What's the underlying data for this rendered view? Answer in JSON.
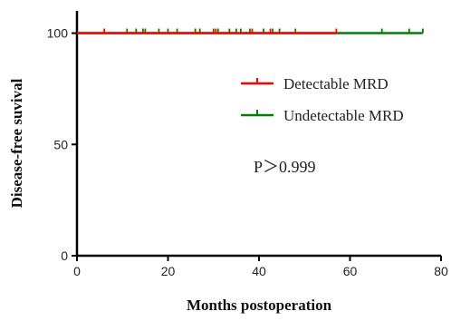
{
  "chart_data": {
    "type": "line",
    "xlabel": "Months postoperation",
    "ylabel": "Disease-free suvival",
    "xlim": [
      0,
      80
    ],
    "ylim": [
      0,
      110
    ],
    "xticks": [
      0,
      20,
      40,
      60,
      80
    ],
    "yticks": [
      0,
      50,
      100
    ],
    "grid": false,
    "legend_position": "right",
    "series": [
      {
        "name": "Detectable MRD",
        "color": "#ff0000",
        "x": [
          0,
          57
        ],
        "y": [
          100,
          100
        ],
        "censored": [
          6,
          30.5,
          38.5,
          42.5,
          57
        ]
      },
      {
        "name": "Undetectable MRD",
        "color": "#008000",
        "x": [
          0,
          76
        ],
        "y": [
          100,
          100
        ],
        "censored": [
          11,
          13,
          14.5,
          15,
          18,
          20,
          22,
          26,
          27,
          30,
          31,
          33.5,
          35,
          36,
          38,
          41,
          43,
          44.5,
          48,
          67,
          73,
          76
        ]
      }
    ],
    "annotations": [
      {
        "text": "P＞0.999"
      }
    ]
  }
}
